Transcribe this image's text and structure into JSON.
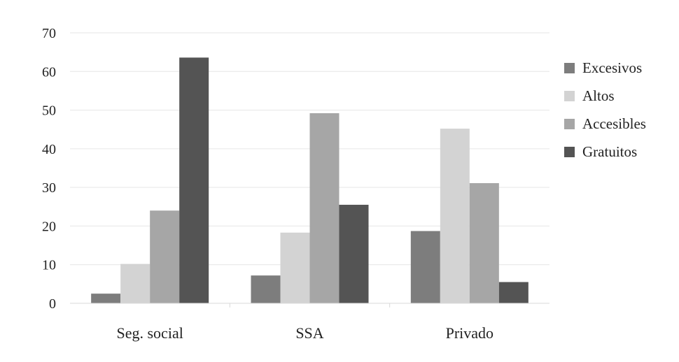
{
  "chart_data": {
    "type": "bar",
    "title": "",
    "xlabel": "",
    "ylabel": "",
    "ylim": [
      0,
      70
    ],
    "yticks": [
      0,
      10,
      20,
      30,
      40,
      50,
      60,
      70
    ],
    "grid": true,
    "legend_position": "right",
    "categories": [
      "Seg. social",
      "SSA",
      "Privado"
    ],
    "series": [
      {
        "name": "Excesivos",
        "color": "#7d7d7d",
        "values": [
          2.5,
          7.2,
          18.7
        ]
      },
      {
        "name": "Altos",
        "color": "#d3d3d3",
        "values": [
          10.2,
          18.3,
          45.2
        ]
      },
      {
        "name": "Accesibles",
        "color": "#a6a6a6",
        "values": [
          24.0,
          49.2,
          31.1
        ]
      },
      {
        "name": "Gratuitos",
        "color": "#545454",
        "values": [
          63.6,
          25.5,
          5.5
        ]
      }
    ]
  }
}
